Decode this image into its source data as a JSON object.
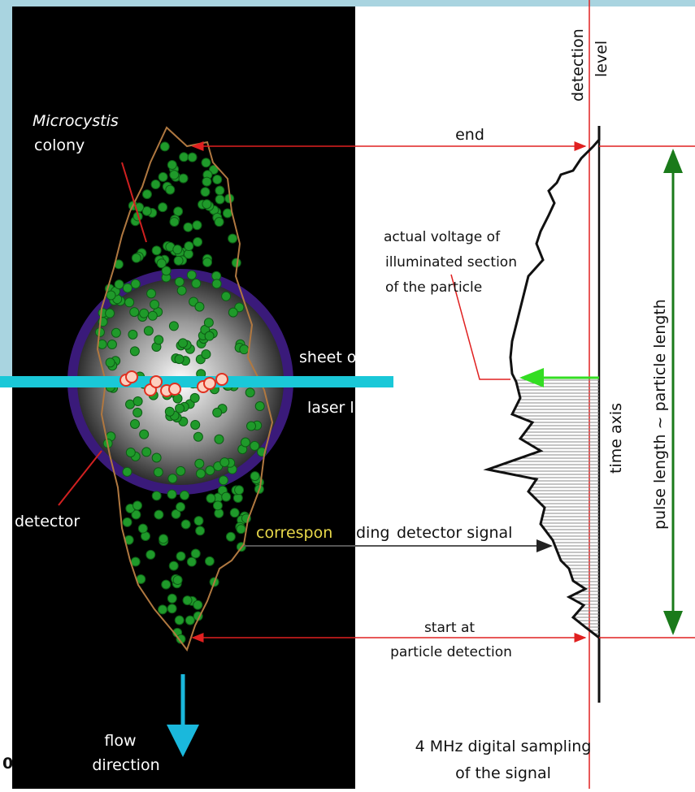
{
  "left_panel": {
    "colony_label": [
      "Microcystis",
      "colony"
    ],
    "detector_label": "detector",
    "laser_label": [
      "sheet of",
      "laser light"
    ],
    "flow_label": [
      "flow",
      "direction"
    ],
    "signal_label": {
      "highlight": "correspon",
      "rest_dark": "ding",
      "rest_light": "detector signal"
    }
  },
  "right_panel": {
    "detection_level": [
      "detection",
      "level"
    ],
    "end_label": "end",
    "voltage_label": [
      "actual voltage of",
      "illuminated section",
      "of the particle"
    ],
    "time_axis": "time  axis",
    "pulse_length": "pulse length ~ particle length",
    "start_label": [
      "start at",
      "particle detection"
    ],
    "caption": [
      "4 MHz digital sampling",
      "of the signal"
    ]
  },
  "edge_mark": "0"
}
